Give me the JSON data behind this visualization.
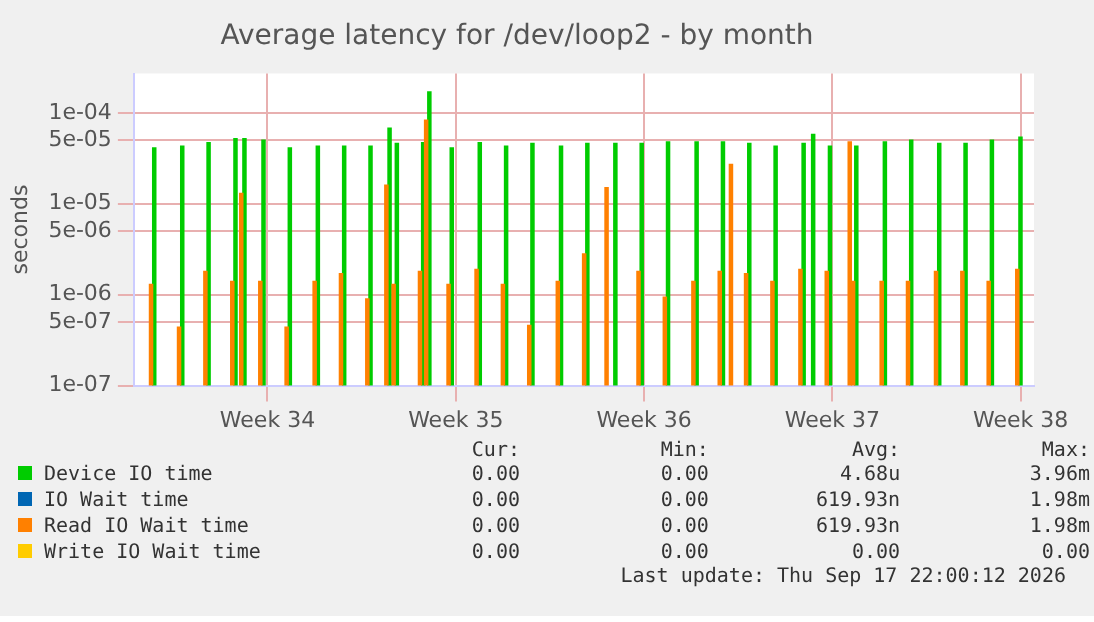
{
  "chart_data": {
    "type": "bar",
    "title": "Average latency for /dev/loop2 - by month",
    "ylabel": "seconds",
    "log": "y",
    "grid": true,
    "legend": "bottom",
    "x": [
      "2026-08-12T17:30",
      "2026-08-13T18:30",
      "2026-08-14T18:00",
      "2026-08-15T18:00",
      "2026-08-16T02:00",
      "2026-08-16T19:00",
      "2026-08-17T18:30",
      "2026-08-18T19:30",
      "2026-08-19T19:00",
      "2026-08-20T18:30",
      "2026-08-21T11:30",
      "2026-08-21T18:00",
      "2026-08-22T17:30",
      "2026-08-22T23:00",
      "2026-08-23T19:00",
      "2026-08-24T20:00",
      "2026-08-25T19:30",
      "2026-08-26T19:00",
      "2026-08-27T20:30",
      "2026-08-28T20:00",
      "2026-08-29T16:00",
      "2026-08-29T21:00",
      "2026-08-30T20:30",
      "2026-08-31T20:00",
      "2026-09-01T21:30",
      "2026-09-02T21:00",
      "2026-09-03T07:00",
      "2026-09-03T20:30",
      "2026-09-04T20:00",
      "2026-09-05T21:00",
      "2026-09-06T05:30",
      "2026-09-06T20:30",
      "2026-09-07T17:00",
      "2026-09-07T20:00",
      "2026-09-08T21:30",
      "2026-09-09T21:00",
      "2026-09-10T22:00",
      "2026-09-11T21:30",
      "2026-09-12T21:00",
      "2026-09-13T22:30"
    ],
    "xlim": [
      "2026-08-12T00:45",
      "2026-09-14T12:00"
    ],
    "xticks": [
      {
        "value": "2026-08-17",
        "label": "Week 34"
      },
      {
        "value": "2026-08-24",
        "label": "Week 35"
      },
      {
        "value": "2026-08-31",
        "label": "Week 36"
      },
      {
        "value": "2026-09-07",
        "label": "Week 37"
      },
      {
        "value": "2026-09-14",
        "label": "Week 38"
      }
    ],
    "ylim": [
      1e-07,
      0.00027
    ],
    "yticks": [
      {
        "value": 1e-07,
        "label": "1e-07"
      },
      {
        "value": 5e-07,
        "label": "5e-07"
      },
      {
        "value": 1e-06,
        "label": "1e-06"
      },
      {
        "value": 5e-06,
        "label": "5e-06"
      },
      {
        "value": 1e-05,
        "label": "1e-05"
      },
      {
        "value": 5e-05,
        "label": "5e-05"
      },
      {
        "value": 0.0001,
        "label": "1e-04"
      }
    ],
    "series": [
      {
        "name": "Device IO time",
        "color": "#00cc00",
        "values": [
          4.1e-05,
          4.3e-05,
          4.7e-05,
          5.2e-05,
          5.2e-05,
          5e-05,
          4.1e-05,
          4.3e-05,
          4.3e-05,
          4.3e-05,
          6.8e-05,
          4.6e-05,
          4.7e-05,
          0.00017,
          4.1e-05,
          4.7e-05,
          4.3e-05,
          4.6e-05,
          4.3e-05,
          4.6e-05,
          null,
          4.6e-05,
          4.6e-05,
          4.8e-05,
          4.8e-05,
          4.8e-05,
          null,
          4.6e-05,
          4.3e-05,
          4.6e-05,
          5.8e-05,
          4.3e-05,
          null,
          4.3e-05,
          4.8e-05,
          5e-05,
          4.6e-05,
          4.6e-05,
          5e-05,
          5.4e-05
        ]
      },
      {
        "name": "IO Wait time",
        "color": "#0066b3",
        "values": [
          null,
          null,
          null,
          null,
          null,
          null,
          null,
          null,
          null,
          null,
          null,
          null,
          null,
          null,
          null,
          null,
          null,
          null,
          null,
          null,
          null,
          null,
          null,
          null,
          null,
          null,
          null,
          null,
          null,
          null,
          null,
          null,
          null,
          null,
          null,
          null,
          null,
          null,
          null,
          null
        ]
      },
      {
        "name": "Read IO Wait time",
        "color": "#ff8000",
        "values": [
          1.3e-06,
          4.4e-07,
          1.8e-06,
          1.4e-06,
          1.3e-05,
          1.4e-06,
          4.4e-07,
          1.4e-06,
          1.7e-06,
          9e-07,
          1.6e-05,
          1.3e-06,
          1.8e-06,
          8.3e-05,
          1.3e-06,
          1.9e-06,
          1.3e-06,
          4.6e-07,
          1.4e-06,
          2.8e-06,
          1.5e-05,
          null,
          1.8e-06,
          9.4e-07,
          1.4e-06,
          1.8e-06,
          2.7e-05,
          1.7e-06,
          1.4e-06,
          1.9e-06,
          null,
          1.8e-06,
          4.8e-05,
          1.4e-06,
          1.4e-06,
          1.4e-06,
          1.8e-06,
          1.8e-06,
          1.4e-06,
          1.9e-06
        ]
      },
      {
        "name": "Write IO Wait time",
        "color": "#ffcc00",
        "values": [
          null,
          null,
          null,
          null,
          null,
          null,
          null,
          null,
          null,
          null,
          null,
          null,
          null,
          null,
          null,
          null,
          null,
          null,
          null,
          null,
          null,
          null,
          null,
          null,
          null,
          null,
          null,
          null,
          null,
          null,
          null,
          null,
          null,
          null,
          null,
          null,
          null,
          null,
          null,
          null
        ]
      }
    ],
    "annotations": [
      "Cur:",
      "Min:",
      "Avg:",
      "Max:",
      "0.00",
      "0.00",
      "4.68u",
      "3.96m",
      "0.00",
      "0.00",
      "619.93n",
      "1.98m",
      "0.00",
      "0.00",
      "619.93n",
      "1.98m",
      "0.00",
      "0.00",
      "0.00",
      "0.00",
      "Last update: Thu Sep 17 22:00:12 2026"
    ]
  }
}
